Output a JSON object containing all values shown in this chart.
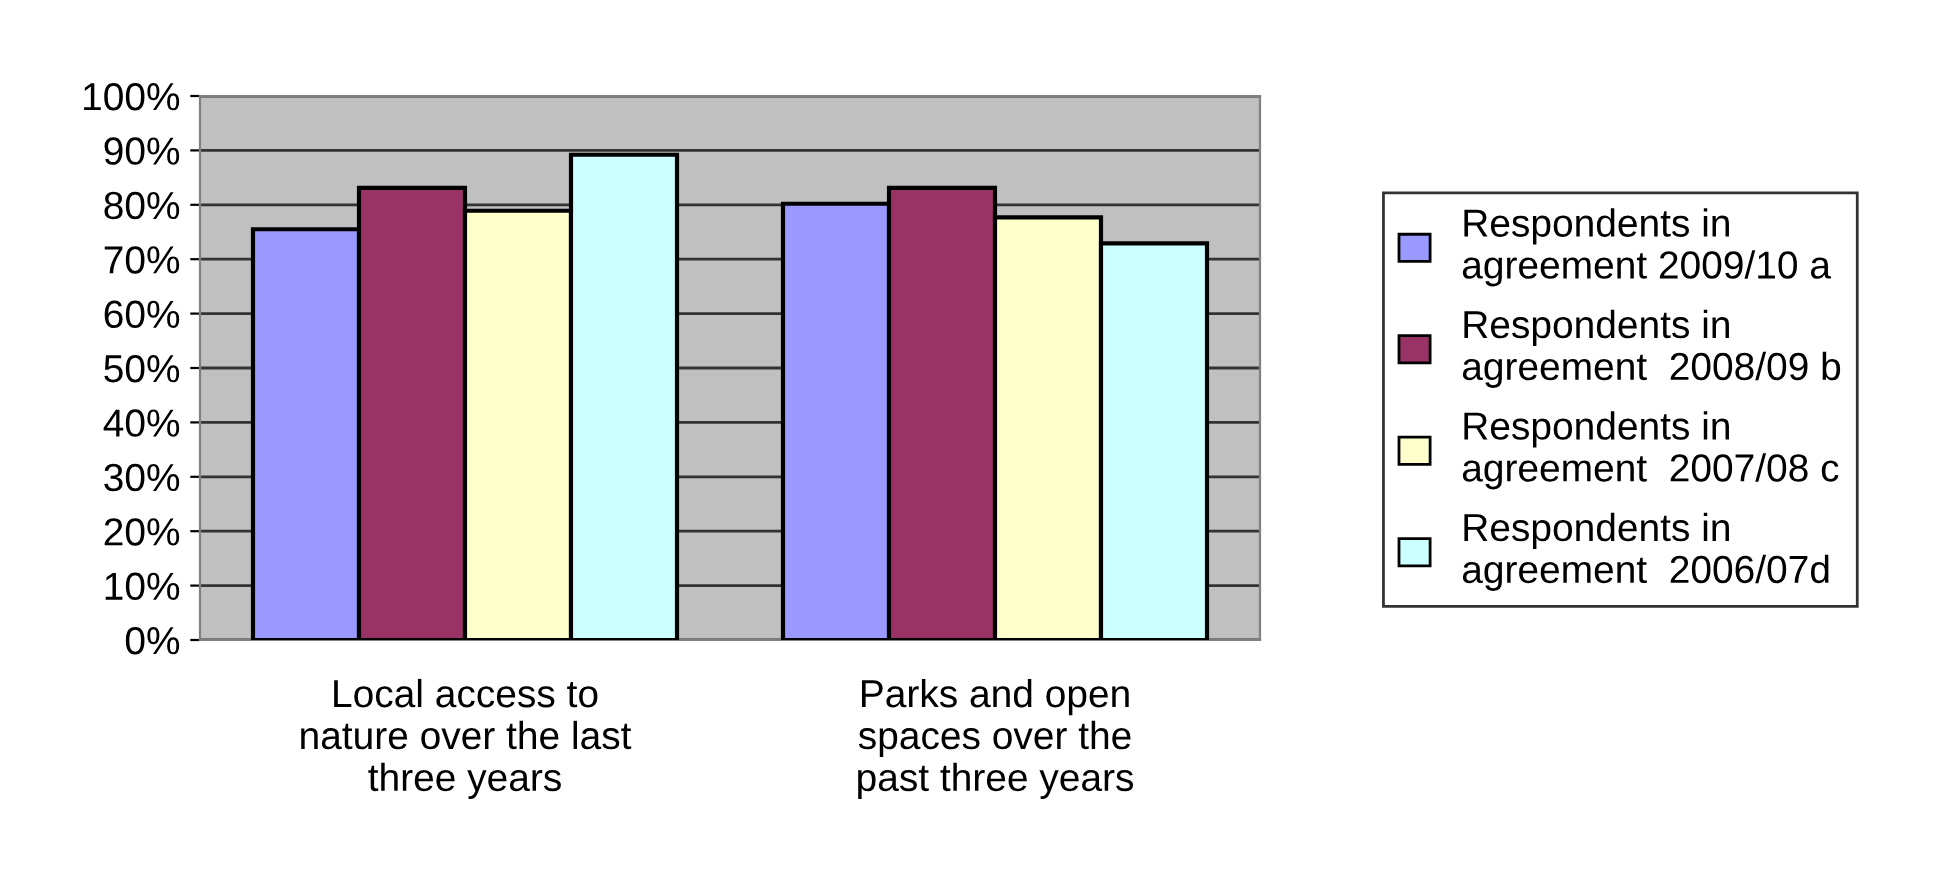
{
  "chart_data": {
    "type": "bar",
    "categories": [
      "Local access to\nnature over the last\nthree years",
      "Parks and open\nspaces over the\npast three years"
    ],
    "series": [
      {
        "name": "Respondents in\nagreement 2009/10 a",
        "color": "#9999ff",
        "values": [
          75.5,
          80.2
        ]
      },
      {
        "name": "Respondents in\nagreement  2008/09 b",
        "color": "#993366",
        "values": [
          83.1,
          83.1
        ]
      },
      {
        "name": "Respondents in\nagreement  2007/08 c",
        "color": "#ffffcc",
        "values": [
          78.9,
          77.7
        ]
      },
      {
        "name": "Respondents in\nagreement  2006/07d",
        "color": "#ccffff",
        "values": [
          89.2,
          72.9
        ]
      }
    ],
    "ylim": [
      0,
      100
    ],
    "yticks": [
      {
        "value": 0,
        "label": "0%"
      },
      {
        "value": 10,
        "label": "10%"
      },
      {
        "value": 20,
        "label": "20%"
      },
      {
        "value": 30,
        "label": "30%"
      },
      {
        "value": 40,
        "label": "40%"
      },
      {
        "value": 50,
        "label": "50%"
      },
      {
        "value": 60,
        "label": "60%"
      },
      {
        "value": 70,
        "label": "70%"
      },
      {
        "value": 80,
        "label": "80%"
      },
      {
        "value": 90,
        "label": "90%"
      },
      {
        "value": 100,
        "label": "100%"
      }
    ],
    "grid": "y",
    "legend": "right"
  }
}
